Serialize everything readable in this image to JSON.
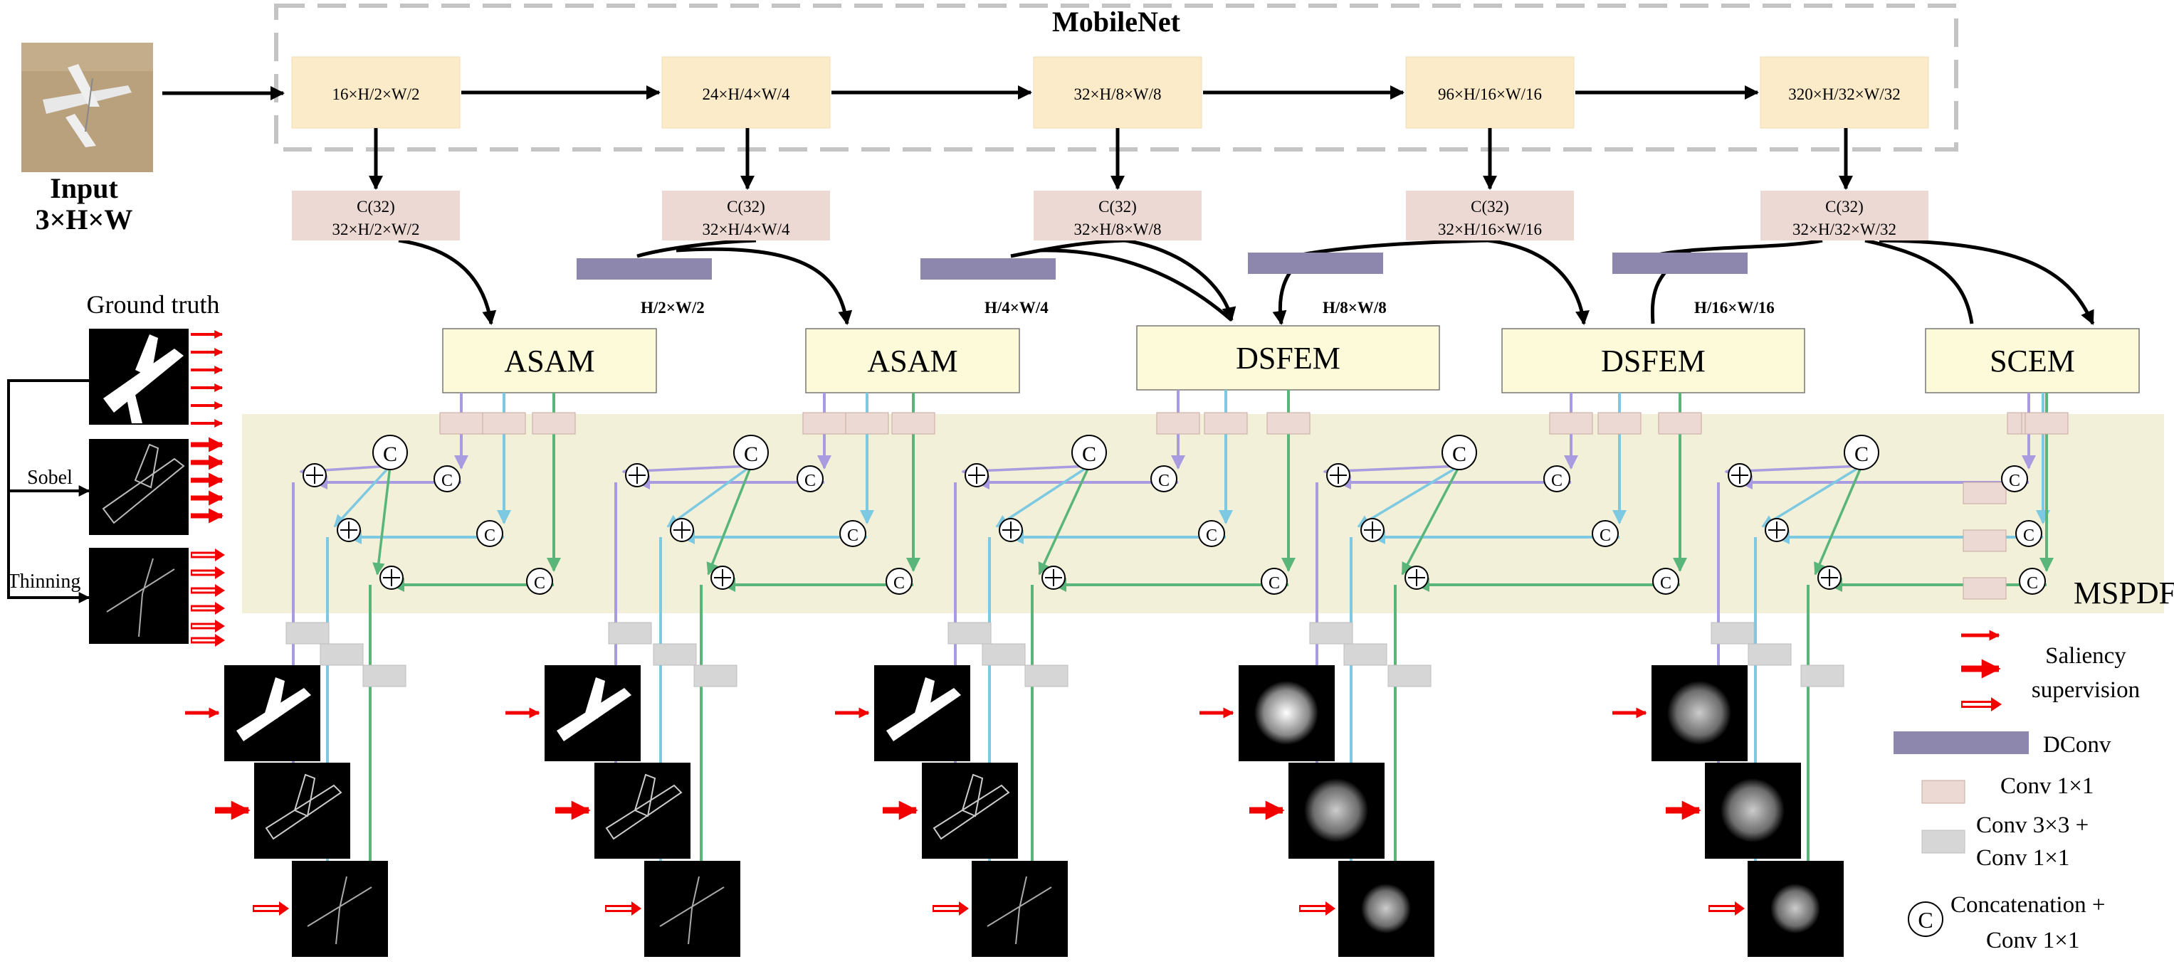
{
  "title": "MobileNet",
  "input": {
    "label": "Input",
    "size": "3×H×W"
  },
  "encoders": [
    "16×H/2×W/2",
    "24×H/4×W/4",
    "32×H/8×W/8",
    "96×H/16×W/16",
    "320×H/32×W/32"
  ],
  "conv_blocks": [
    {
      "c": "C(32)",
      "size": "32×H/2×W/2"
    },
    {
      "c": "C(32)",
      "size": "32×H/4×W/4"
    },
    {
      "c": "C(32)",
      "size": "32×H/8×W/8"
    },
    {
      "c": "C(32)",
      "size": "32×H/16×W/16"
    },
    {
      "c": "C(32)",
      "size": "32×H/32×W/32"
    }
  ],
  "dconv_labels": [
    "H/2×W/2",
    "H/4×W/4",
    "H/8×W/8",
    "H/16×W/16"
  ],
  "modules": [
    "ASAM",
    "ASAM",
    "DSFEM",
    "DSFEM",
    "SCEM"
  ],
  "mspdf_label": "MSPDF",
  "ground_truth": {
    "title": "Ground truth",
    "sobel": "Sobel",
    "thinning": "Thinning"
  },
  "legend": {
    "saliency_1": "Saliency",
    "saliency_2": "supervision",
    "dconv": "DConv",
    "conv1": "Conv 1×1",
    "conv3_1": "Conv 3×3 +",
    "conv3_2": "Conv 1×1",
    "concat_1": "Concatenation +",
    "concat_2": "Conv 1×1"
  },
  "colors": {
    "encoder_fill": "#fcebc9",
    "conv_fill": "#ecd9d3",
    "dconv_fill": "#8d87ad",
    "module_fill": "#fcfad8",
    "mspdf_fill": "#f2f0d9",
    "purple_line": "#a99be0",
    "blue_line": "#7ec9e2",
    "green_line": "#59b57a",
    "red_arrow": "#f20000"
  }
}
